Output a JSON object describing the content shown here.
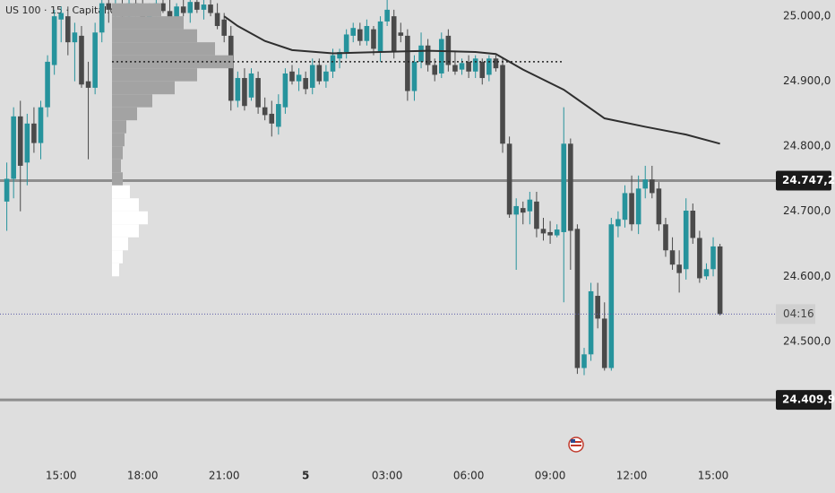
{
  "chart_data": {
    "type": "candlestick",
    "title": "US 100 · 15 · Capital.com",
    "up_color": "#26939c",
    "down_color": "#4a4a4a",
    "open": [
      24715,
      24750,
      24846,
      24775,
      24835,
      24805,
      24860,
      24925,
      24995,
      25000,
      24960,
      24970,
      24900,
      24890,
      24975,
      25020,
      25010,
      25015,
      25000,
      25020,
      25010,
      24998,
      25012,
      25020,
      25008,
      24995,
      25015,
      25005,
      25022,
      25010,
      25018,
      25005,
      24995,
      24970,
      24870,
      24905,
      24875,
      24905,
      24860,
      24850,
      24830,
      24860,
      24915,
      24900,
      24905,
      24890,
      24925,
      24900,
      24915,
      24935,
      24945,
      24970,
      24980,
      24962,
      24980,
      24945,
      24992,
      25000,
      24975,
      24970,
      24885,
      24930,
      24955,
      24925,
      24912,
      24970,
      24925,
      24918,
      24930,
      24915,
      24930,
      24910,
      24935,
      24925,
      24804,
      24695,
      24705,
      24700,
      24715,
      24673,
      24668,
      24663,
      24668,
      24804,
      24673,
      24459,
      24480,
      24570,
      24535,
      24459,
      24677,
      24687,
      24728,
      24680,
      24735,
      24749,
      24735,
      24680,
      24640,
      24618,
      24611,
      24701,
      24659,
      24600,
      24611,
      24646
    ],
    "high": [
      24775,
      24860,
      24870,
      24850,
      24860,
      24870,
      24940,
      25010,
      25015,
      25015,
      24990,
      24985,
      24930,
      24990,
      25030,
      25030,
      25025,
      25030,
      25025,
      25030,
      25025,
      25020,
      25030,
      25030,
      25025,
      25020,
      25030,
      25028,
      25030,
      25025,
      25030,
      25020,
      25005,
      24985,
      24915,
      24920,
      24920,
      24915,
      24875,
      24870,
      24880,
      24920,
      24925,
      24920,
      24915,
      24935,
      24935,
      24925,
      24950,
      24950,
      24980,
      24990,
      24990,
      24995,
      24985,
      25000,
      25025,
      25010,
      24990,
      24980,
      24940,
      24975,
      24965,
      24935,
      24975,
      24980,
      24945,
      24935,
      24940,
      24940,
      24935,
      24940,
      24940,
      24935,
      24815,
      24720,
      24715,
      24730,
      24730,
      24690,
      24685,
      24680,
      24860,
      24812,
      24680,
      24490,
      24590,
      24590,
      24560,
      24690,
      24700,
      24740,
      24755,
      24755,
      24770,
      24770,
      24745,
      24690,
      24660,
      24640,
      24720,
      24712,
      24670,
      24620,
      24660,
      24650
    ],
    "low": [
      24670,
      24720,
      24700,
      24740,
      24790,
      24780,
      24845,
      24910,
      24960,
      24940,
      24900,
      24890,
      24780,
      24880,
      24960,
      24990,
      24995,
      24990,
      24985,
      25000,
      24990,
      24985,
      25000,
      25005,
      24990,
      24985,
      25000,
      24990,
      25005,
      24995,
      25000,
      24980,
      24960,
      24855,
      24860,
      24855,
      24870,
      24850,
      24840,
      24815,
      24818,
      24850,
      24895,
      24885,
      24880,
      24880,
      24895,
      24890,
      24905,
      24920,
      24935,
      24960,
      24955,
      24955,
      24940,
      24930,
      24985,
      24935,
      24960,
      24870,
      24870,
      24920,
      24915,
      24900,
      24905,
      24915,
      24910,
      24910,
      24905,
      24905,
      24895,
      24900,
      24915,
      24790,
      24690,
      24610,
      24680,
      24680,
      24660,
      24655,
      24650,
      24660,
      24560,
      24610,
      24450,
      24448,
      24470,
      24520,
      24455,
      24455,
      24660,
      24675,
      24670,
      24665,
      24720,
      24720,
      24670,
      24630,
      24610,
      24575,
      24595,
      24650,
      24590,
      24595,
      24600,
      24540
    ],
    "close": [
      24750,
      24846,
      24770,
      24835,
      24805,
      24860,
      24930,
      25000,
      25005,
      24960,
      24975,
      24895,
      24890,
      24975,
      25020,
      25010,
      25015,
      25000,
      25020,
      25010,
      24998,
      25012,
      25020,
      25008,
      24995,
      25015,
      25005,
      25022,
      25010,
      25018,
      25005,
      24985,
      24970,
      24870,
      24905,
      24862,
      24912,
      24860,
      24848,
      24835,
      24865,
      24912,
      24900,
      24910,
      24888,
      24925,
      24900,
      24915,
      24940,
      24945,
      24972,
      24982,
      24962,
      24985,
      24950,
      24992,
      25010,
      24945,
      24970,
      24885,
      24930,
      24955,
      24925,
      24910,
      24965,
      24925,
      24915,
      24928,
      24915,
      24935,
      24905,
      24935,
      24920,
      24804,
      24695,
      24708,
      24698,
      24718,
      24673,
      24666,
      24663,
      24672,
      24804,
      24670,
      24459,
      24480,
      24577,
      24535,
      24459,
      24680,
      24688,
      24728,
      24680,
      24735,
      24749,
      24728,
      24680,
      24640,
      24618,
      24605,
      24701,
      24659,
      24597,
      24611,
      24646,
      24542
    ],
    "moving_average": {
      "color": "#2f2f2f",
      "x": [
        32,
        34,
        38,
        42,
        48,
        55,
        62,
        69,
        72,
        76,
        82,
        88,
        94,
        100,
        105
      ],
      "values": [
        25000,
        24985,
        24962,
        24948,
        24943,
        24945,
        24947,
        24945,
        24942,
        24918,
        24887,
        24843,
        24830,
        24818,
        24804
      ]
    },
    "volume_profile": {
      "prices": [
        24610,
        24630,
        24650,
        24670,
        24690,
        24710,
        24730,
        24750,
        24770,
        24790,
        24810,
        24830,
        24850,
        24870,
        24890,
        24910,
        24930,
        24950,
        24970,
        24990,
        25010
      ],
      "volumes": [
        8,
        12,
        18,
        30,
        40,
        30,
        20,
        12,
        10,
        12,
        14,
        16,
        28,
        45,
        70,
        95,
        135,
        115,
        95,
        80,
        55
      ],
      "value_area_low": 24750,
      "value_area_color": "#a3a3a3",
      "outside_color": "#ffffff"
    },
    "poc": 24930,
    "levels": [
      {
        "value": 24747.2,
        "label": "24.747,2"
      },
      {
        "value": 24409.9,
        "label": "24.409,9"
      }
    ],
    "countdown": "04:16",
    "xlim": [
      -1,
      112.7
    ],
    "ylim": [
      24315,
      25025
    ],
    "xticks": [
      {
        "value": 8,
        "label": "15:00"
      },
      {
        "value": 20,
        "label": "18:00"
      },
      {
        "value": 32,
        "label": "21:00"
      },
      {
        "value": 44,
        "label": "5"
      },
      {
        "value": 56,
        "label": "03:00"
      },
      {
        "value": 68,
        "label": "06:00"
      },
      {
        "value": 80,
        "label": "09:00"
      },
      {
        "value": 92,
        "label": "12:00"
      },
      {
        "value": 104,
        "label": "15:00"
      }
    ],
    "yticks": [
      {
        "value": 24500,
        "label": "24.500,0"
      },
      {
        "value": 24600,
        "label": "24.600,0"
      },
      {
        "value": 24700,
        "label": "24.700,0"
      },
      {
        "value": 24800,
        "label": "24.800,0"
      },
      {
        "value": 24900,
        "label": "24.900,0"
      },
      {
        "value": 25000,
        "label": "25.000,0"
      }
    ]
  }
}
